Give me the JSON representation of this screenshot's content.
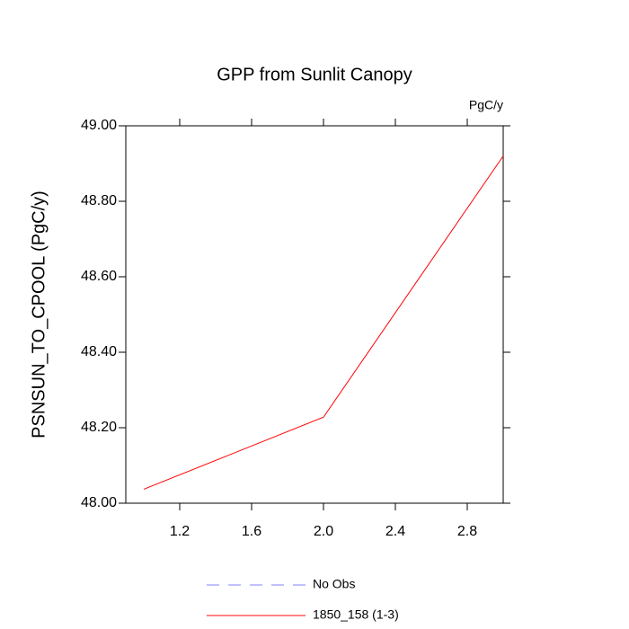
{
  "chart_data": {
    "type": "line",
    "title": "GPP from Sunlit Canopy",
    "units": "PgC/y",
    "ylabel": "PSNSUN_TO_CPOOL  (PgC/y)",
    "x": [
      1,
      2,
      3
    ],
    "series": [
      {
        "name": "No Obs",
        "color": "#8080ff",
        "dashed": true,
        "values": [
          null,
          null,
          null
        ]
      },
      {
        "name": "1850_158 (1-3)",
        "color": "#ff0000",
        "dashed": false,
        "values": [
          48.037,
          48.228,
          48.92
        ]
      }
    ],
    "xlim": [
      0.9,
      3.0
    ],
    "xticks": [
      1.2,
      1.6,
      {
        "value": 2.0,
        "label": "2.0"
      },
      2.4,
      2.8
    ],
    "ylim": [
      48.0,
      49.0
    ],
    "yticks": [
      {
        "value": 48.0,
        "label": "48.00"
      },
      {
        "value": 48.2,
        "label": "48.20"
      },
      {
        "value": 48.4,
        "label": "48.40"
      },
      {
        "value": 48.6,
        "label": "48.60"
      },
      {
        "value": 48.8,
        "label": "48.80"
      },
      {
        "value": 49.0,
        "label": "49.00"
      }
    ],
    "grid": false
  }
}
